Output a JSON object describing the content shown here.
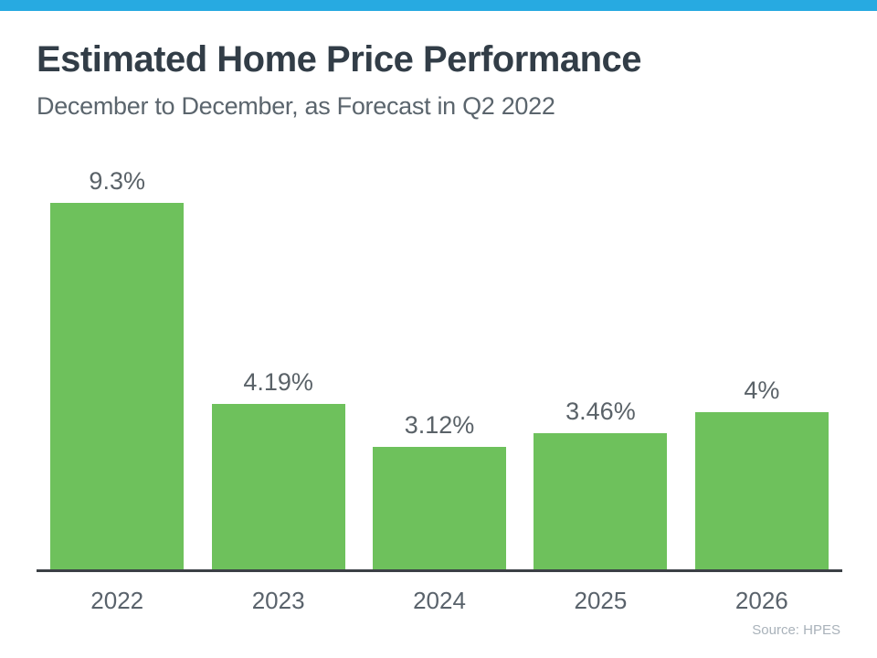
{
  "page": {
    "background_color": "#ffffff",
    "top_bar_color": "#27aae1"
  },
  "header": {
    "title": "Estimated Home Price Performance",
    "subtitle": "December to December, as Forecast in Q2 2022"
  },
  "chart_data": {
    "type": "bar",
    "title": "Estimated Home Price Performance",
    "subtitle": "December to December, as Forecast in Q2 2022",
    "categories": [
      "2022",
      "2023",
      "2024",
      "2025",
      "2026"
    ],
    "values": [
      9.3,
      4.19,
      3.12,
      3.46,
      4
    ],
    "value_labels": [
      "9.3%",
      "4.19%",
      "3.12%",
      "3.46%",
      "4%"
    ],
    "xlabel": "",
    "ylabel": "",
    "ylim": [
      0,
      10
    ],
    "grid": false,
    "legend": "none",
    "value_labels_position": "above-bars",
    "bar_color": "#6ec15c",
    "axis_line_color": "#3b4045",
    "source": "Source: HPES"
  },
  "footer": {
    "source": "Source: HPES"
  }
}
